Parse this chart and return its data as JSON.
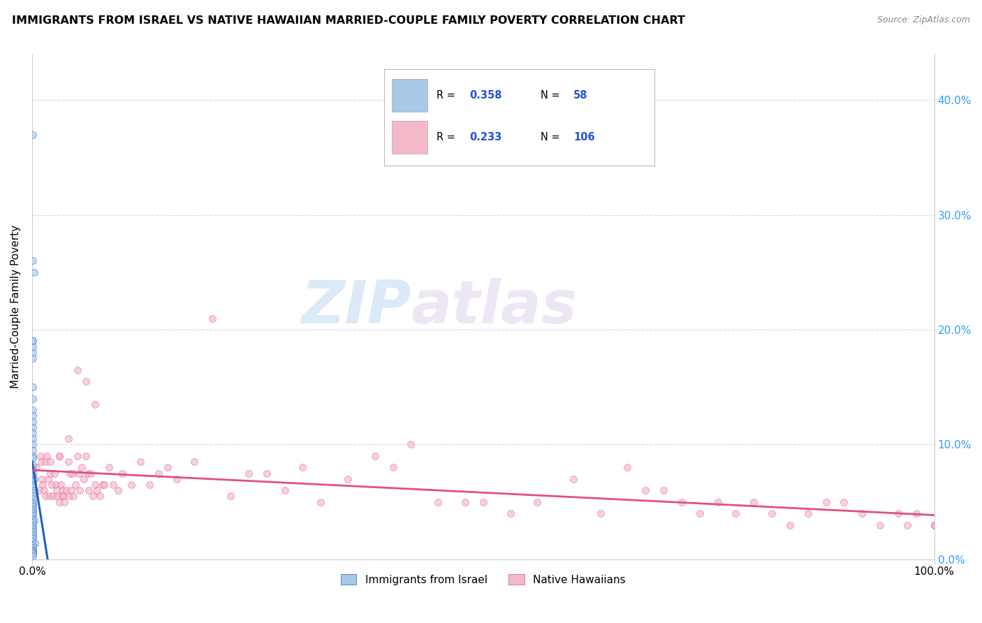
{
  "title": "IMMIGRANTS FROM ISRAEL VS NATIVE HAWAIIAN MARRIED-COUPLE FAMILY POVERTY CORRELATION CHART",
  "source": "Source: ZipAtlas.com",
  "ylabel": "Married-Couple Family Poverty",
  "legend_label1": "Immigrants from Israel",
  "legend_label2": "Native Hawaiians",
  "R1": 0.358,
  "N1": 58,
  "R2": 0.233,
  "N2": 106,
  "color_blue": "#a8c8e8",
  "color_pink": "#f4b8c8",
  "color_blue_line": "#2060c0",
  "color_pink_line": "#e05080",
  "color_dashed": "#90b8d8",
  "watermark_text": "ZIP",
  "watermark_text2": "atlas",
  "background": "#ffffff",
  "grid_color": "#d8d8e8",
  "xlim": [
    0.0,
    1.0
  ],
  "ylim": [
    0.0,
    0.44
  ],
  "ytick_values": [
    0.0,
    0.1,
    0.2,
    0.3,
    0.4
  ],
  "israel_x": [
    0.001,
    0.001,
    0.002,
    0.001,
    0.001,
    0.001,
    0.001,
    0.001,
    0.001,
    0.001,
    0.001,
    0.001,
    0.001,
    0.001,
    0.001,
    0.001,
    0.001,
    0.001,
    0.001,
    0.001,
    0.001,
    0.001,
    0.001,
    0.001,
    0.002,
    0.001,
    0.001,
    0.001,
    0.002,
    0.001,
    0.001,
    0.001,
    0.001,
    0.001,
    0.001,
    0.001,
    0.001,
    0.001,
    0.001,
    0.001,
    0.002,
    0.001,
    0.001,
    0.001,
    0.001,
    0.001,
    0.001,
    0.001,
    0.001,
    0.001,
    0.003,
    0.001,
    0.001,
    0.001,
    0.001,
    0.001,
    0.001,
    0.001
  ],
  "israel_y": [
    0.37,
    0.26,
    0.25,
    0.19,
    0.19,
    0.185,
    0.18,
    0.175,
    0.15,
    0.14,
    0.13,
    0.125,
    0.12,
    0.115,
    0.11,
    0.105,
    0.1,
    0.095,
    0.09,
    0.088,
    0.082,
    0.078,
    0.075,
    0.072,
    0.07,
    0.068,
    0.065,
    0.063,
    0.06,
    0.058,
    0.055,
    0.053,
    0.05,
    0.048,
    0.046,
    0.044,
    0.042,
    0.04,
    0.038,
    0.036,
    0.034,
    0.032,
    0.03,
    0.028,
    0.026,
    0.024,
    0.022,
    0.02,
    0.018,
    0.016,
    0.014,
    0.012,
    0.01,
    0.008,
    0.007,
    0.006,
    0.005,
    0.003
  ],
  "hawaii_x": [
    0.005,
    0.008,
    0.009,
    0.01,
    0.011,
    0.012,
    0.013,
    0.015,
    0.015,
    0.016,
    0.018,
    0.019,
    0.02,
    0.022,
    0.023,
    0.025,
    0.026,
    0.027,
    0.028,
    0.03,
    0.03,
    0.032,
    0.033,
    0.034,
    0.035,
    0.036,
    0.038,
    0.04,
    0.041,
    0.042,
    0.043,
    0.045,
    0.046,
    0.048,
    0.05,
    0.052,
    0.053,
    0.055,
    0.057,
    0.06,
    0.062,
    0.063,
    0.065,
    0.067,
    0.07,
    0.072,
    0.075,
    0.078,
    0.08,
    0.085,
    0.09,
    0.095,
    0.1,
    0.11,
    0.12,
    0.13,
    0.14,
    0.15,
    0.16,
    0.18,
    0.2,
    0.22,
    0.24,
    0.26,
    0.28,
    0.3,
    0.32,
    0.35,
    0.38,
    0.4,
    0.42,
    0.45,
    0.48,
    0.5,
    0.53,
    0.56,
    0.6,
    0.63,
    0.66,
    0.68,
    0.7,
    0.72,
    0.74,
    0.76,
    0.78,
    0.8,
    0.82,
    0.84,
    0.86,
    0.88,
    0.9,
    0.92,
    0.94,
    0.96,
    0.97,
    0.98,
    1.0,
    1.0,
    1.0,
    1.0,
    0.05,
    0.06,
    0.07,
    0.04,
    0.03,
    0.02
  ],
  "hawaii_y": [
    0.08,
    0.06,
    0.09,
    0.085,
    0.07,
    0.065,
    0.06,
    0.085,
    0.055,
    0.09,
    0.07,
    0.055,
    0.075,
    0.065,
    0.055,
    0.075,
    0.065,
    0.06,
    0.055,
    0.09,
    0.05,
    0.065,
    0.055,
    0.06,
    0.055,
    0.05,
    0.06,
    0.085,
    0.055,
    0.075,
    0.06,
    0.075,
    0.055,
    0.065,
    0.09,
    0.075,
    0.06,
    0.08,
    0.07,
    0.09,
    0.075,
    0.06,
    0.075,
    0.055,
    0.065,
    0.06,
    0.055,
    0.065,
    0.065,
    0.08,
    0.065,
    0.06,
    0.075,
    0.065,
    0.085,
    0.065,
    0.075,
    0.08,
    0.07,
    0.085,
    0.21,
    0.055,
    0.075,
    0.075,
    0.06,
    0.08,
    0.05,
    0.07,
    0.09,
    0.08,
    0.1,
    0.05,
    0.05,
    0.05,
    0.04,
    0.05,
    0.07,
    0.04,
    0.08,
    0.06,
    0.06,
    0.05,
    0.04,
    0.05,
    0.04,
    0.05,
    0.04,
    0.03,
    0.04,
    0.05,
    0.05,
    0.04,
    0.03,
    0.04,
    0.03,
    0.04,
    0.03,
    0.03,
    0.03,
    0.03,
    0.165,
    0.155,
    0.135,
    0.105,
    0.09,
    0.085
  ]
}
